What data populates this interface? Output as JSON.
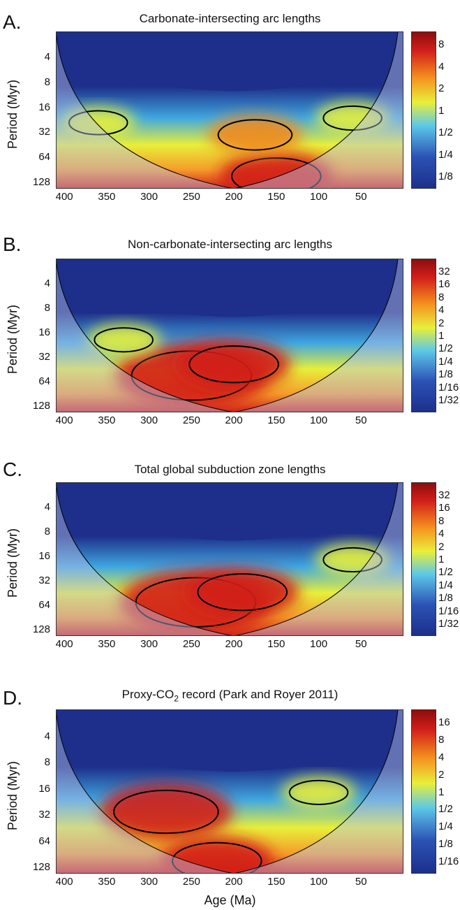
{
  "colors": {
    "low": "#1d2f8a",
    "mid": "#e8ef3a",
    "high": "#d21e1a",
    "coi": "#b9c2e6",
    "contour": "#000000"
  },
  "chart_data": [
    {
      "type": "heatmap",
      "letter": "A.",
      "title": "Carbonate-intersecting arc lengths",
      "ylabel": "Period (Myr)",
      "xlabel": "",
      "y_ticks": [
        "4",
        "8",
        "16",
        "32",
        "64",
        "128"
      ],
      "x_ticks": [
        "400",
        "350",
        "300",
        "250",
        "200",
        "150",
        "100",
        "50"
      ],
      "xlim": [
        410,
        0
      ],
      "y_scale": "log2",
      "colorbar_ticks": [
        "8",
        "4",
        "2",
        "1",
        "1/2",
        "1/4",
        "1/8"
      ],
      "hotspots": [
        {
          "age": 150,
          "period": 110,
          "power": 8
        },
        {
          "age": 175,
          "period": 35,
          "power": 4
        },
        {
          "age": 360,
          "period": 25,
          "power": 2
        },
        {
          "age": 60,
          "period": 22,
          "power": 2
        }
      ]
    },
    {
      "type": "heatmap",
      "letter": "B.",
      "title": "Non-carbonate-intersecting arc lengths",
      "ylabel": "Period (Myr)",
      "xlabel": "",
      "y_ticks": [
        "4",
        "8",
        "16",
        "32",
        "64",
        "128"
      ],
      "x_ticks": [
        "400",
        "350",
        "300",
        "250",
        "200",
        "150",
        "100",
        "50"
      ],
      "xlim": [
        410,
        0
      ],
      "y_scale": "log2",
      "colorbar_ticks": [
        "32",
        "16",
        "8",
        "4",
        "2",
        "1",
        "1/2",
        "1/4",
        "1/8",
        "1/16",
        "1/32"
      ],
      "hotspots": [
        {
          "age": 250,
          "period": 55,
          "power": 32
        },
        {
          "age": 200,
          "period": 40,
          "power": 8
        },
        {
          "age": 330,
          "period": 20,
          "power": 2
        }
      ]
    },
    {
      "type": "heatmap",
      "letter": "C.",
      "title": "Total global subduction zone lengths",
      "ylabel": "Period (Myr)",
      "xlabel": "",
      "y_ticks": [
        "4",
        "8",
        "16",
        "32",
        "64",
        "128"
      ],
      "x_ticks": [
        "400",
        "350",
        "300",
        "250",
        "200",
        "150",
        "100",
        "50"
      ],
      "xlim": [
        410,
        0
      ],
      "y_scale": "log2",
      "colorbar_ticks": [
        "32",
        "16",
        "8",
        "4",
        "2",
        "1",
        "1/2",
        "1/4",
        "1/8",
        "1/16",
        "1/32"
      ],
      "hotspots": [
        {
          "age": 245,
          "period": 60,
          "power": 32
        },
        {
          "age": 190,
          "period": 45,
          "power": 8
        },
        {
          "age": 60,
          "period": 18,
          "power": 2
        }
      ]
    },
    {
      "type": "heatmap",
      "letter": "D.",
      "title_main": "Proxy-CO",
      "title_sub": "2",
      "title_rest": " record (Park and Royer 2011)",
      "ylabel": "Period (Myr)",
      "xlabel": "Age (Ma)",
      "y_ticks": [
        "4",
        "8",
        "16",
        "32",
        "64",
        "128"
      ],
      "x_ticks": [
        "400",
        "350",
        "300",
        "250",
        "200",
        "150",
        "100",
        "50"
      ],
      "xlim": [
        410,
        0
      ],
      "y_scale": "log2",
      "colorbar_ticks": [
        "16",
        "8",
        "4",
        "2",
        "1",
        "1/2",
        "1/4",
        "1/8",
        "1/16"
      ],
      "hotspots": [
        {
          "age": 280,
          "period": 30,
          "power": 16
        },
        {
          "age": 220,
          "period": 110,
          "power": 8
        },
        {
          "age": 100,
          "period": 18,
          "power": 2
        }
      ]
    }
  ]
}
